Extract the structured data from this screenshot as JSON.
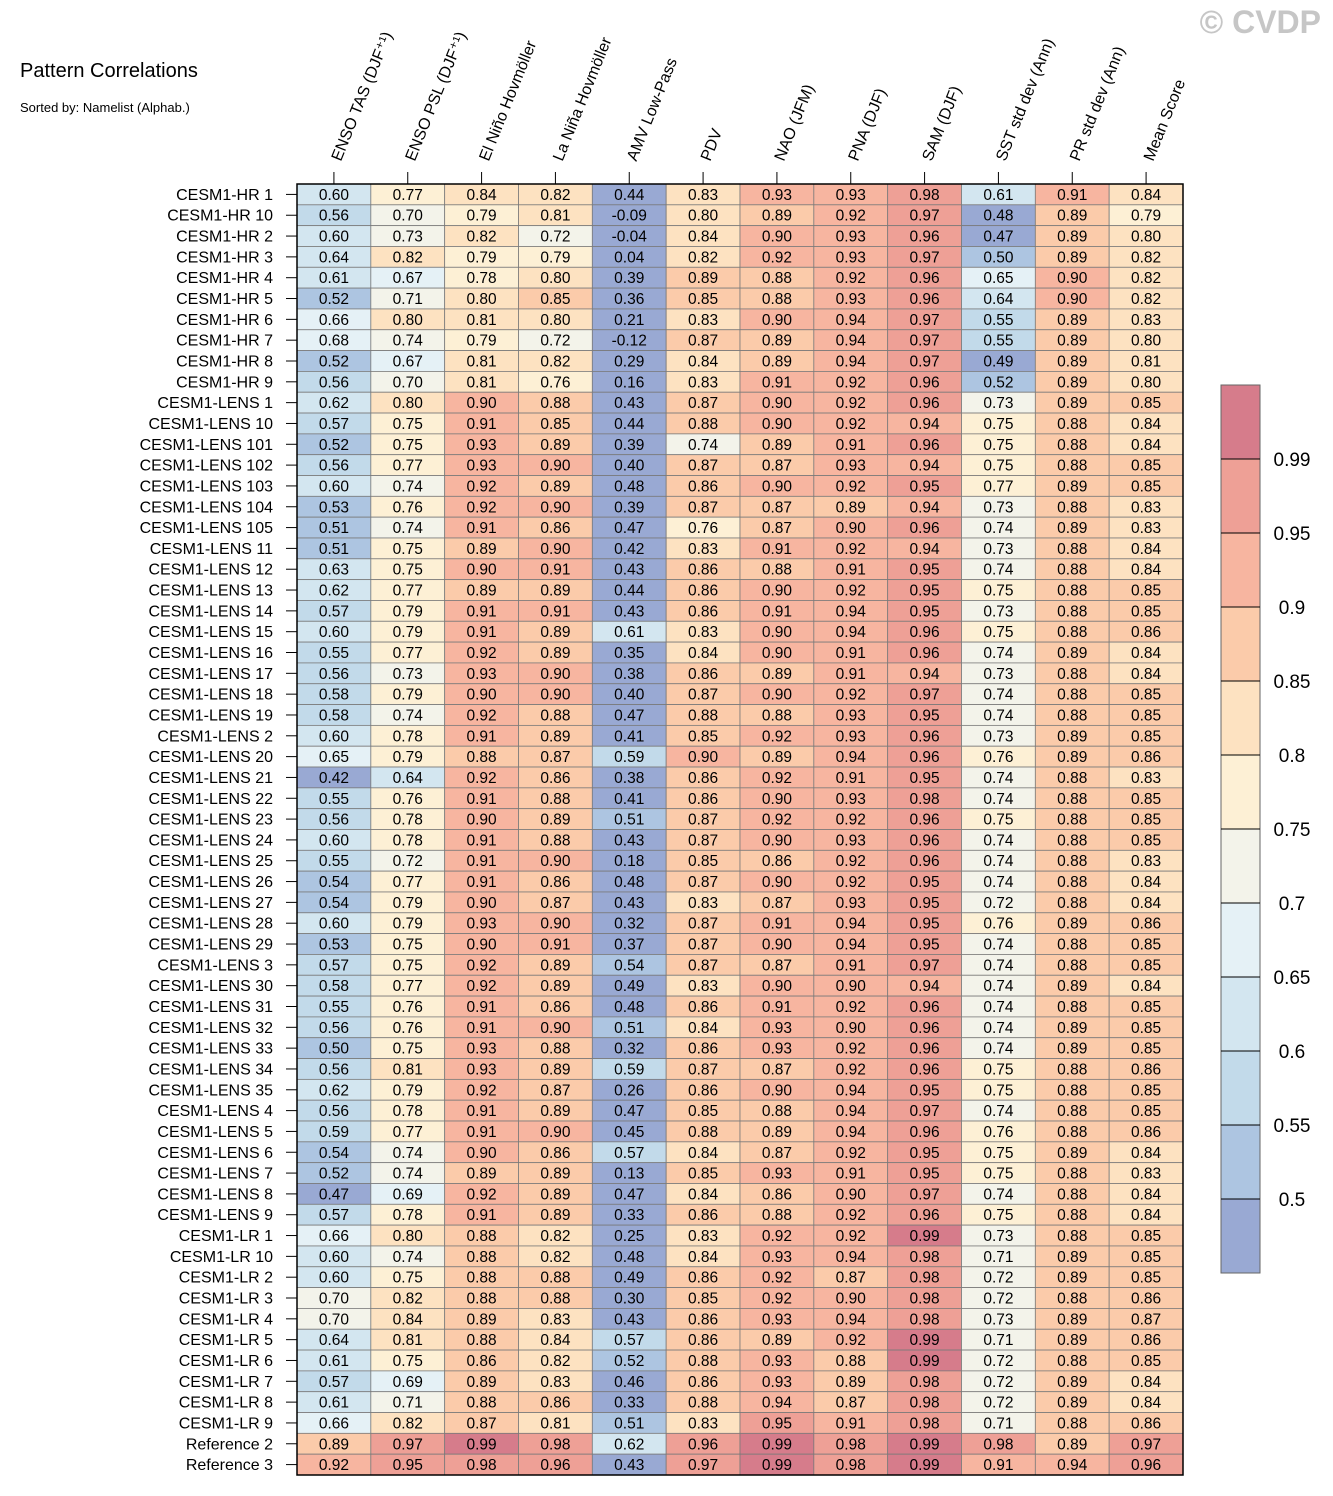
{
  "header": {
    "title": "Pattern Correlations",
    "subtitle": "Sorted by: Namelist (Alphab.)",
    "watermark": "© CVDP"
  },
  "chart_data": {
    "type": "heatmap",
    "columns": [
      "ENSO TAS (DJF⁺¹)",
      "ENSO PSL (DJF⁺¹)",
      "El Niño Hovmöller",
      "La Niña Hovmöller",
      "AMV Low-Pass",
      "PDV",
      "NAO (JFM)",
      "PNA (DJF)",
      "SAM (DJF)",
      "SST std dev (Ann)",
      "PR std dev (Ann)",
      "Mean Score"
    ],
    "rows": [
      "CESM1-HR 1",
      "CESM1-HR 10",
      "CESM1-HR 2",
      "CESM1-HR 3",
      "CESM1-HR 4",
      "CESM1-HR 5",
      "CESM1-HR 6",
      "CESM1-HR 7",
      "CESM1-HR 8",
      "CESM1-HR 9",
      "CESM1-LENS 1",
      "CESM1-LENS 10",
      "CESM1-LENS 101",
      "CESM1-LENS 102",
      "CESM1-LENS 103",
      "CESM1-LENS 104",
      "CESM1-LENS 105",
      "CESM1-LENS 11",
      "CESM1-LENS 12",
      "CESM1-LENS 13",
      "CESM1-LENS 14",
      "CESM1-LENS 15",
      "CESM1-LENS 16",
      "CESM1-LENS 17",
      "CESM1-LENS 18",
      "CESM1-LENS 19",
      "CESM1-LENS 2",
      "CESM1-LENS 20",
      "CESM1-LENS 21",
      "CESM1-LENS 22",
      "CESM1-LENS 23",
      "CESM1-LENS 24",
      "CESM1-LENS 25",
      "CESM1-LENS 26",
      "CESM1-LENS 27",
      "CESM1-LENS 28",
      "CESM1-LENS 29",
      "CESM1-LENS 3",
      "CESM1-LENS 30",
      "CESM1-LENS 31",
      "CESM1-LENS 32",
      "CESM1-LENS 33",
      "CESM1-LENS 34",
      "CESM1-LENS 35",
      "CESM1-LENS 4",
      "CESM1-LENS 5",
      "CESM1-LENS 6",
      "CESM1-LENS 7",
      "CESM1-LENS 8",
      "CESM1-LENS 9",
      "CESM1-LR 1",
      "CESM1-LR 10",
      "CESM1-LR 2",
      "CESM1-LR 3",
      "CESM1-LR 4",
      "CESM1-LR 5",
      "CESM1-LR 6",
      "CESM1-LR 7",
      "CESM1-LR 8",
      "CESM1-LR 9",
      "Reference 2",
      "Reference 3"
    ],
    "values": [
      [
        0.6,
        0.77,
        0.84,
        0.82,
        0.44,
        0.83,
        0.93,
        0.93,
        0.98,
        0.61,
        0.91,
        0.84
      ],
      [
        0.56,
        0.7,
        0.79,
        0.81,
        -0.09,
        0.8,
        0.89,
        0.92,
        0.97,
        0.48,
        0.89,
        0.79
      ],
      [
        0.6,
        0.73,
        0.82,
        0.72,
        -0.04,
        0.84,
        0.9,
        0.93,
        0.96,
        0.47,
        0.89,
        0.8
      ],
      [
        0.64,
        0.82,
        0.79,
        0.79,
        0.04,
        0.82,
        0.92,
        0.93,
        0.97,
        0.5,
        0.89,
        0.82
      ],
      [
        0.61,
        0.67,
        0.78,
        0.8,
        0.39,
        0.89,
        0.88,
        0.92,
        0.96,
        0.65,
        0.9,
        0.82
      ],
      [
        0.52,
        0.71,
        0.8,
        0.85,
        0.36,
        0.85,
        0.88,
        0.93,
        0.96,
        0.64,
        0.9,
        0.82
      ],
      [
        0.66,
        0.8,
        0.81,
        0.8,
        0.21,
        0.83,
        0.9,
        0.94,
        0.97,
        0.55,
        0.89,
        0.83
      ],
      [
        0.68,
        0.74,
        0.79,
        0.72,
        -0.12,
        0.87,
        0.89,
        0.94,
        0.97,
        0.55,
        0.89,
        0.8
      ],
      [
        0.52,
        0.67,
        0.81,
        0.82,
        0.29,
        0.84,
        0.89,
        0.94,
        0.97,
        0.49,
        0.89,
        0.81
      ],
      [
        0.56,
        0.7,
        0.81,
        0.76,
        0.16,
        0.83,
        0.91,
        0.92,
        0.96,
        0.52,
        0.89,
        0.8
      ],
      [
        0.62,
        0.8,
        0.9,
        0.88,
        0.43,
        0.87,
        0.9,
        0.92,
        0.96,
        0.73,
        0.89,
        0.85
      ],
      [
        0.57,
        0.75,
        0.91,
        0.85,
        0.44,
        0.88,
        0.9,
        0.92,
        0.94,
        0.75,
        0.88,
        0.84
      ],
      [
        0.52,
        0.75,
        0.93,
        0.89,
        0.39,
        0.74,
        0.89,
        0.91,
        0.96,
        0.75,
        0.88,
        0.84
      ],
      [
        0.56,
        0.77,
        0.93,
        0.9,
        0.4,
        0.87,
        0.87,
        0.93,
        0.94,
        0.75,
        0.88,
        0.85
      ],
      [
        0.6,
        0.74,
        0.92,
        0.89,
        0.48,
        0.86,
        0.9,
        0.92,
        0.95,
        0.77,
        0.89,
        0.85
      ],
      [
        0.53,
        0.76,
        0.92,
        0.9,
        0.39,
        0.87,
        0.87,
        0.89,
        0.94,
        0.73,
        0.88,
        0.83
      ],
      [
        0.51,
        0.74,
        0.91,
        0.86,
        0.47,
        0.76,
        0.87,
        0.9,
        0.96,
        0.74,
        0.89,
        0.83
      ],
      [
        0.51,
        0.75,
        0.89,
        0.9,
        0.42,
        0.83,
        0.91,
        0.92,
        0.94,
        0.73,
        0.88,
        0.84
      ],
      [
        0.63,
        0.75,
        0.9,
        0.91,
        0.43,
        0.86,
        0.88,
        0.91,
        0.95,
        0.74,
        0.88,
        0.84
      ],
      [
        0.62,
        0.77,
        0.89,
        0.89,
        0.44,
        0.86,
        0.9,
        0.92,
        0.95,
        0.75,
        0.88,
        0.85
      ],
      [
        0.57,
        0.79,
        0.91,
        0.91,
        0.43,
        0.86,
        0.91,
        0.94,
        0.95,
        0.73,
        0.88,
        0.85
      ],
      [
        0.6,
        0.79,
        0.91,
        0.89,
        0.61,
        0.83,
        0.9,
        0.94,
        0.96,
        0.75,
        0.88,
        0.86
      ],
      [
        0.55,
        0.77,
        0.92,
        0.89,
        0.35,
        0.84,
        0.9,
        0.91,
        0.96,
        0.74,
        0.89,
        0.84
      ],
      [
        0.56,
        0.73,
        0.93,
        0.9,
        0.38,
        0.86,
        0.89,
        0.91,
        0.94,
        0.73,
        0.88,
        0.84
      ],
      [
        0.58,
        0.79,
        0.9,
        0.9,
        0.4,
        0.87,
        0.9,
        0.92,
        0.97,
        0.74,
        0.88,
        0.85
      ],
      [
        0.58,
        0.74,
        0.92,
        0.88,
        0.47,
        0.88,
        0.88,
        0.93,
        0.95,
        0.74,
        0.88,
        0.85
      ],
      [
        0.6,
        0.78,
        0.91,
        0.89,
        0.41,
        0.85,
        0.92,
        0.93,
        0.96,
        0.73,
        0.89,
        0.85
      ],
      [
        0.65,
        0.79,
        0.88,
        0.87,
        0.59,
        0.9,
        0.89,
        0.94,
        0.96,
        0.76,
        0.89,
        0.86
      ],
      [
        0.42,
        0.64,
        0.92,
        0.86,
        0.38,
        0.86,
        0.92,
        0.91,
        0.95,
        0.74,
        0.88,
        0.83
      ],
      [
        0.55,
        0.76,
        0.91,
        0.88,
        0.41,
        0.86,
        0.9,
        0.93,
        0.98,
        0.74,
        0.88,
        0.85
      ],
      [
        0.56,
        0.78,
        0.9,
        0.89,
        0.51,
        0.87,
        0.92,
        0.92,
        0.96,
        0.75,
        0.88,
        0.85
      ],
      [
        0.6,
        0.78,
        0.91,
        0.88,
        0.43,
        0.87,
        0.9,
        0.93,
        0.96,
        0.74,
        0.88,
        0.85
      ],
      [
        0.55,
        0.72,
        0.91,
        0.9,
        0.18,
        0.85,
        0.86,
        0.92,
        0.96,
        0.74,
        0.88,
        0.83
      ],
      [
        0.54,
        0.77,
        0.91,
        0.86,
        0.48,
        0.87,
        0.9,
        0.92,
        0.95,
        0.74,
        0.88,
        0.84
      ],
      [
        0.54,
        0.79,
        0.9,
        0.87,
        0.43,
        0.83,
        0.87,
        0.93,
        0.95,
        0.72,
        0.88,
        0.84
      ],
      [
        0.6,
        0.79,
        0.93,
        0.9,
        0.32,
        0.87,
        0.91,
        0.94,
        0.95,
        0.76,
        0.89,
        0.86
      ],
      [
        0.53,
        0.75,
        0.9,
        0.91,
        0.37,
        0.87,
        0.9,
        0.94,
        0.95,
        0.74,
        0.88,
        0.85
      ],
      [
        0.57,
        0.75,
        0.92,
        0.89,
        0.54,
        0.87,
        0.87,
        0.91,
        0.97,
        0.74,
        0.88,
        0.85
      ],
      [
        0.58,
        0.77,
        0.92,
        0.89,
        0.49,
        0.83,
        0.9,
        0.9,
        0.94,
        0.74,
        0.89,
        0.84
      ],
      [
        0.55,
        0.76,
        0.91,
        0.86,
        0.48,
        0.86,
        0.91,
        0.92,
        0.96,
        0.74,
        0.88,
        0.85
      ],
      [
        0.56,
        0.76,
        0.91,
        0.9,
        0.51,
        0.84,
        0.93,
        0.9,
        0.96,
        0.74,
        0.89,
        0.85
      ],
      [
        0.5,
        0.75,
        0.93,
        0.88,
        0.32,
        0.86,
        0.93,
        0.92,
        0.96,
        0.74,
        0.89,
        0.85
      ],
      [
        0.56,
        0.81,
        0.93,
        0.89,
        0.59,
        0.87,
        0.87,
        0.92,
        0.96,
        0.75,
        0.88,
        0.86
      ],
      [
        0.62,
        0.79,
        0.92,
        0.87,
        0.26,
        0.86,
        0.9,
        0.94,
        0.95,
        0.75,
        0.88,
        0.85
      ],
      [
        0.56,
        0.78,
        0.91,
        0.89,
        0.47,
        0.85,
        0.88,
        0.94,
        0.97,
        0.74,
        0.88,
        0.85
      ],
      [
        0.59,
        0.77,
        0.91,
        0.9,
        0.45,
        0.88,
        0.89,
        0.94,
        0.96,
        0.76,
        0.88,
        0.86
      ],
      [
        0.54,
        0.74,
        0.9,
        0.86,
        0.57,
        0.84,
        0.87,
        0.92,
        0.95,
        0.75,
        0.89,
        0.84
      ],
      [
        0.52,
        0.74,
        0.89,
        0.89,
        0.13,
        0.85,
        0.93,
        0.91,
        0.95,
        0.75,
        0.88,
        0.83
      ],
      [
        0.47,
        0.69,
        0.92,
        0.89,
        0.47,
        0.84,
        0.86,
        0.9,
        0.97,
        0.74,
        0.88,
        0.84
      ],
      [
        0.57,
        0.78,
        0.91,
        0.89,
        0.33,
        0.86,
        0.88,
        0.92,
        0.96,
        0.75,
        0.88,
        0.84
      ],
      [
        0.66,
        0.8,
        0.88,
        0.82,
        0.25,
        0.83,
        0.92,
        0.92,
        0.99,
        0.73,
        0.88,
        0.85
      ],
      [
        0.6,
        0.74,
        0.88,
        0.82,
        0.48,
        0.84,
        0.93,
        0.94,
        0.98,
        0.71,
        0.89,
        0.85
      ],
      [
        0.6,
        0.75,
        0.88,
        0.88,
        0.49,
        0.86,
        0.92,
        0.87,
        0.98,
        0.72,
        0.89,
        0.85
      ],
      [
        0.7,
        0.82,
        0.88,
        0.88,
        0.3,
        0.85,
        0.92,
        0.9,
        0.98,
        0.72,
        0.88,
        0.86
      ],
      [
        0.7,
        0.84,
        0.89,
        0.83,
        0.43,
        0.86,
        0.93,
        0.94,
        0.98,
        0.73,
        0.89,
        0.87
      ],
      [
        0.64,
        0.81,
        0.88,
        0.84,
        0.57,
        0.86,
        0.89,
        0.92,
        0.99,
        0.71,
        0.89,
        0.86
      ],
      [
        0.61,
        0.75,
        0.86,
        0.82,
        0.52,
        0.88,
        0.93,
        0.88,
        0.99,
        0.72,
        0.88,
        0.85
      ],
      [
        0.57,
        0.69,
        0.89,
        0.83,
        0.46,
        0.86,
        0.93,
        0.89,
        0.98,
        0.72,
        0.89,
        0.84
      ],
      [
        0.61,
        0.71,
        0.88,
        0.86,
        0.33,
        0.88,
        0.94,
        0.87,
        0.98,
        0.72,
        0.89,
        0.84
      ],
      [
        0.66,
        0.82,
        0.87,
        0.81,
        0.51,
        0.83,
        0.95,
        0.91,
        0.98,
        0.71,
        0.88,
        0.86
      ],
      [
        0.89,
        0.97,
        0.99,
        0.98,
        0.62,
        0.96,
        0.99,
        0.98,
        0.99,
        0.98,
        0.89,
        0.97
      ],
      [
        0.92,
        0.95,
        0.98,
        0.96,
        0.43,
        0.97,
        0.99,
        0.98,
        0.99,
        0.91,
        0.94,
        0.96
      ]
    ],
    "colorbar": {
      "levels": [
        0.5,
        0.55,
        0.6,
        0.65,
        0.7,
        0.75,
        0.8,
        0.85,
        0.9,
        0.95,
        0.99
      ],
      "tick_labels": [
        "0.5",
        "0.55",
        "0.6",
        "0.65",
        "0.7",
        "0.75",
        "0.8",
        "0.85",
        "0.9",
        "0.95",
        "0.99"
      ],
      "colors": [
        "#99a9d3",
        "#adc5e1",
        "#c2daea",
        "#d3e6f0",
        "#e5f1f6",
        "#f3f3ea",
        "#fdf0d5",
        "#fde2c1",
        "#fbcbaa",
        "#f7b5a0",
        "#eea096",
        "#d67c8b"
      ]
    }
  }
}
